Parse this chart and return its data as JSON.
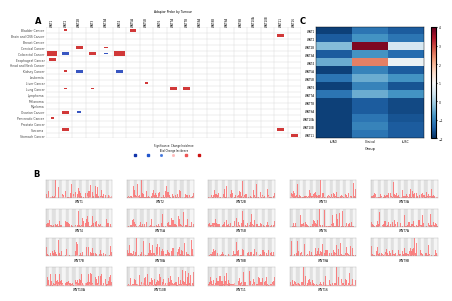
{
  "panel_A": {
    "col_labels": [
      "WNT1",
      "WNT2",
      "WNT2B",
      "WNT3",
      "WNT3A",
      "WNT4",
      "WNT5A",
      "WNT5B",
      "WNT6",
      "WNT7A",
      "WNT7B",
      "WNT8A",
      "WNT8B",
      "WNT9A",
      "WNT9B",
      "WNT10A",
      "WNT10B",
      "WNT11",
      "WNT16"
    ],
    "row_labels": [
      "Bladder Cancer",
      "Brain and CNS Cancer",
      "Breast Cancer",
      "Cervical Cancer",
      "Colorectal Cancer",
      "Esophageal Cancer",
      "Head and Neck Cancer",
      "Kidney Cancer",
      "Leukemia",
      "Liver Cancer",
      "Lung Cancer",
      "Lymphoma",
      "Melanoma",
      "Myeloma",
      "Ovarian Cancer",
      "Pancreatic Cancer",
      "Prostate Cancer",
      "Sarcoma",
      "Stomach Cancer"
    ],
    "data": [
      [
        0,
        1,
        0,
        0,
        0,
        0,
        2,
        0,
        0,
        0,
        0,
        0,
        0,
        0,
        0,
        0,
        0,
        0,
        0
      ],
      [
        0,
        0,
        0,
        0,
        0,
        0,
        0,
        0,
        0,
        0,
        0,
        0,
        0,
        0,
        0,
        0,
        0,
        2,
        0
      ],
      [
        0,
        0,
        0,
        0,
        0,
        0,
        0,
        0,
        0,
        0,
        0,
        0,
        0,
        0,
        0,
        0,
        0,
        0,
        0
      ],
      [
        0,
        0,
        2,
        0,
        1,
        0,
        0,
        0,
        0,
        0,
        0,
        0,
        0,
        0,
        0,
        0,
        0,
        0,
        0
      ],
      [
        3,
        -2,
        0,
        2,
        -1,
        3,
        0,
        0,
        0,
        0,
        0,
        0,
        0,
        0,
        0,
        0,
        0,
        0,
        0
      ],
      [
        2,
        0,
        0,
        0,
        0,
        0,
        0,
        0,
        0,
        0,
        0,
        0,
        0,
        0,
        0,
        0,
        0,
        0,
        0
      ],
      [
        0,
        0,
        0,
        0,
        0,
        0,
        0,
        0,
        0,
        0,
        0,
        0,
        0,
        0,
        0,
        0,
        0,
        0,
        0
      ],
      [
        0,
        1,
        -2,
        0,
        0,
        -2,
        0,
        0,
        0,
        0,
        0,
        0,
        0,
        0,
        0,
        0,
        0,
        0,
        0
      ],
      [
        0,
        0,
        0,
        0,
        0,
        0,
        0,
        0,
        0,
        0,
        0,
        0,
        0,
        0,
        0,
        0,
        0,
        0,
        0
      ],
      [
        0,
        0,
        0,
        0,
        0,
        0,
        0,
        1,
        0,
        0,
        0,
        0,
        0,
        0,
        0,
        0,
        0,
        0,
        0
      ],
      [
        0,
        1,
        0,
        1,
        0,
        0,
        0,
        0,
        0,
        2,
        2,
        0,
        0,
        0,
        0,
        0,
        0,
        0,
        0
      ],
      [
        0,
        0,
        0,
        0,
        0,
        0,
        0,
        0,
        0,
        0,
        0,
        0,
        0,
        0,
        0,
        0,
        0,
        0,
        0
      ],
      [
        0,
        0,
        0,
        0,
        0,
        0,
        0,
        0,
        0,
        0,
        0,
        0,
        0,
        0,
        0,
        0,
        0,
        0,
        0
      ],
      [
        0,
        0,
        0,
        0,
        0,
        0,
        0,
        0,
        0,
        0,
        0,
        0,
        0,
        0,
        0,
        0,
        0,
        0,
        0
      ],
      [
        0,
        2,
        -1,
        0,
        0,
        0,
        0,
        0,
        0,
        0,
        0,
        0,
        0,
        0,
        0,
        0,
        0,
        0,
        0
      ],
      [
        1,
        0,
        0,
        0,
        0,
        0,
        0,
        0,
        0,
        0,
        0,
        0,
        0,
        0,
        0,
        0,
        0,
        0,
        0
      ],
      [
        0,
        0,
        0,
        0,
        0,
        0,
        0,
        0,
        0,
        0,
        0,
        0,
        0,
        0,
        0,
        0,
        0,
        0,
        0
      ],
      [
        0,
        2,
        0,
        0,
        0,
        0,
        0,
        0,
        0,
        0,
        0,
        0,
        0,
        0,
        0,
        0,
        0,
        2,
        0
      ],
      [
        0,
        0,
        0,
        0,
        0,
        0,
        0,
        0,
        0,
        0,
        0,
        0,
        0,
        0,
        0,
        0,
        0,
        0,
        2
      ]
    ],
    "x_header": "Adaptor Probe by Tumour",
    "y_footer1": "Significance: Change Incidence",
    "y_footer2": "Total Change Incidence"
  },
  "panel_C": {
    "row_labels": [
      "WNT1",
      "WNT2",
      "WNT2B",
      "WNT3A",
      "WNT4",
      "WNT5A",
      "WNT5B",
      "WNT6",
      "WNT7A",
      "WNT7B",
      "WNT9A",
      "WNT10A",
      "WNT10B",
      "WNT11"
    ],
    "col_labels": [
      "LUAD",
      "Clinical",
      "LUSC"
    ],
    "data": [
      [
        -1.8,
        -1.2,
        -1.5
      ],
      [
        -1.5,
        -0.8,
        -1.2
      ],
      [
        -0.3,
        3.8,
        0.5
      ],
      [
        -1.5,
        -0.8,
        -1.3
      ],
      [
        -0.5,
        2.5,
        0.8
      ],
      [
        -1.8,
        -1.0,
        -1.5
      ],
      [
        -1.2,
        -0.5,
        -0.8
      ],
      [
        -1.8,
        -1.0,
        -1.6
      ],
      [
        -1.2,
        -0.5,
        -0.8
      ],
      [
        -1.8,
        -1.5,
        -1.7
      ],
      [
        -1.8,
        -1.5,
        -1.7
      ],
      [
        -1.8,
        -1.2,
        -1.6
      ],
      [
        -1.8,
        -1.0,
        -1.5
      ],
      [
        -1.8,
        -1.2,
        -1.5
      ]
    ],
    "vmin": -2,
    "vmax": 4,
    "cmap": "RdBu_r"
  },
  "panel_B": {
    "n_rows": 4,
    "n_cols": 5,
    "n_plots": 19,
    "gene_labels": [
      "WNT1",
      "WNT2",
      "WNT2B",
      "WNT3",
      "WNT3A",
      "WNT4",
      "WNT5A",
      "WNT5B",
      "WNT6",
      "WNT7A",
      "WNT7B",
      "WNT8A",
      "WNT8B",
      "WNT9A",
      "WNT9B",
      "WNT10A",
      "WNT10B",
      "WNT11",
      "WNT16"
    ]
  },
  "bg_color": "#ffffff",
  "grid_color": "#d0d0d0"
}
